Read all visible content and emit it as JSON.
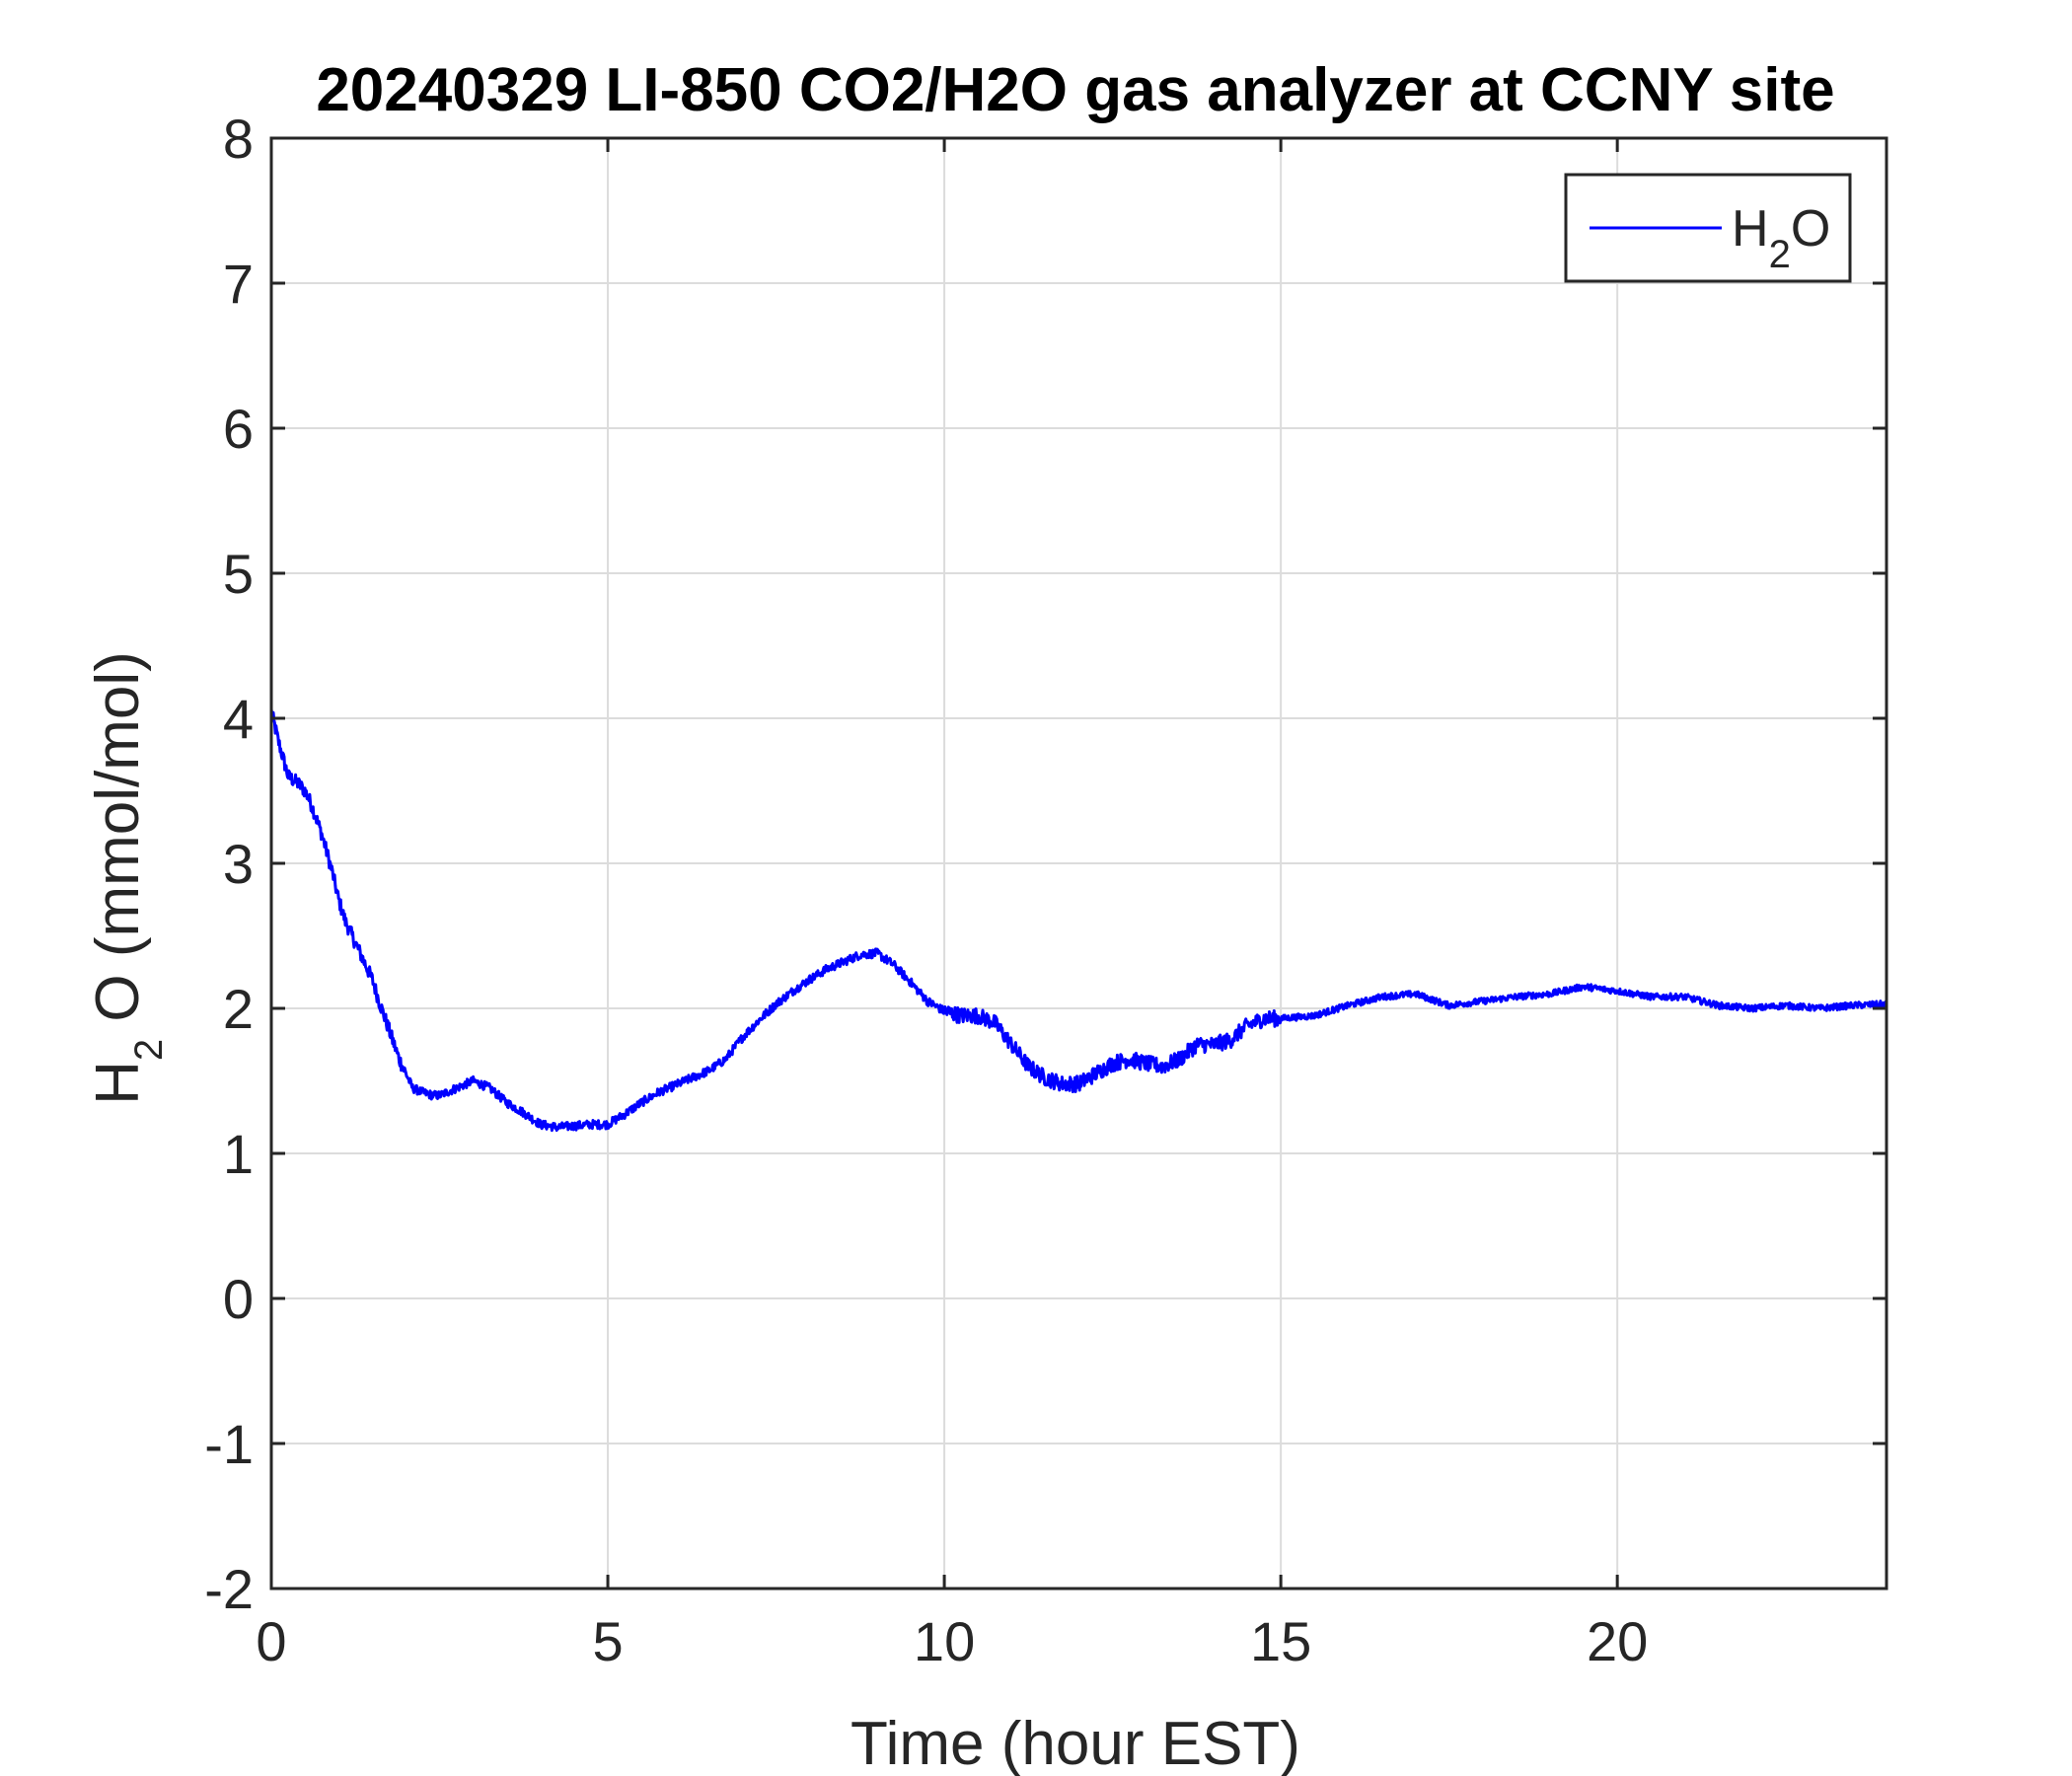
{
  "chart_data": {
    "type": "line",
    "title": "20240329 LI-850 CO2/H2O gas analyzer at CCNY site",
    "xlabel": "Time (hour EST)",
    "ylabel": {
      "base": "H",
      "sub": "2",
      "rest": "O (mmol/mol)"
    },
    "xlim": [
      0,
      24
    ],
    "ylim": [
      -2,
      8
    ],
    "xticks": [
      0,
      5,
      10,
      15,
      20
    ],
    "yticks": [
      -2,
      -1,
      0,
      1,
      2,
      3,
      4,
      5,
      6,
      7,
      8
    ],
    "grid": true,
    "legend_position": "top-right",
    "series": [
      {
        "name": {
          "base": "H",
          "sub": "2",
          "rest": "O"
        },
        "color": "#0000ff",
        "x": [
          0,
          0.1,
          0.25,
          0.4,
          0.5,
          0.6,
          0.75,
          0.9,
          1.0,
          1.1,
          1.25,
          1.4,
          1.5,
          1.6,
          1.75,
          1.9,
          2.0,
          2.1,
          2.25,
          2.4,
          2.5,
          2.75,
          3.0,
          3.25,
          3.5,
          3.75,
          4.0,
          4.25,
          4.5,
          4.75,
          5.0,
          5.25,
          5.5,
          5.75,
          6.0,
          6.25,
          6.5,
          6.75,
          7.0,
          7.25,
          7.5,
          7.75,
          8.0,
          8.25,
          8.5,
          8.75,
          9.0,
          9.25,
          9.5,
          9.75,
          10.0,
          10.25,
          10.5,
          10.75,
          11.0,
          11.25,
          11.5,
          11.75,
          12.0,
          12.25,
          12.5,
          12.75,
          13.0,
          13.25,
          13.5,
          13.75,
          14.0,
          14.25,
          14.5,
          14.75,
          15.0,
          15.5,
          16.0,
          16.5,
          17.0,
          17.5,
          18.0,
          18.5,
          19.0,
          19.5,
          20.0,
          20.5,
          21.0,
          21.5,
          22.0,
          22.5,
          23.0,
          23.5,
          24.0
        ],
        "y": [
          4.05,
          3.85,
          3.6,
          3.55,
          3.5,
          3.4,
          3.2,
          2.95,
          2.75,
          2.6,
          2.45,
          2.3,
          2.2,
          2.05,
          1.85,
          1.65,
          1.55,
          1.45,
          1.42,
          1.4,
          1.4,
          1.45,
          1.5,
          1.45,
          1.35,
          1.28,
          1.2,
          1.18,
          1.19,
          1.2,
          1.2,
          1.27,
          1.35,
          1.42,
          1.47,
          1.52,
          1.57,
          1.65,
          1.8,
          1.92,
          2.03,
          2.12,
          2.2,
          2.27,
          2.32,
          2.37,
          2.38,
          2.3,
          2.18,
          2.05,
          1.98,
          1.95,
          1.95,
          1.9,
          1.75,
          1.6,
          1.52,
          1.48,
          1.48,
          1.55,
          1.62,
          1.65,
          1.62,
          1.6,
          1.65,
          1.75,
          1.75,
          1.78,
          1.88,
          1.93,
          1.93,
          1.95,
          2.02,
          2.08,
          2.1,
          2.02,
          2.05,
          2.08,
          2.1,
          2.15,
          2.12,
          2.08,
          2.08,
          2.02,
          2.0,
          2.02,
          2.0,
          2.02,
          2.03
        ]
      }
    ]
  }
}
